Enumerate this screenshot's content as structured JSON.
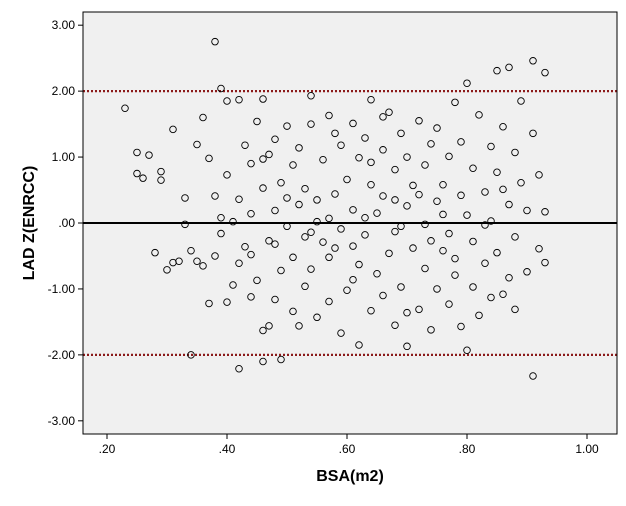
{
  "chart_data": {
    "type": "scatter",
    "title": "",
    "xlabel": "BSA(m2)",
    "ylabel": "LAD Z(ENRCC)",
    "xlim": [
      0.16,
      1.05
    ],
    "ylim": [
      -3.2,
      3.2
    ],
    "x_ticks": [
      0.2,
      0.4,
      0.6,
      0.8,
      1.0
    ],
    "x_tick_labels": [
      ".20",
      ".40",
      ".60",
      ".80",
      "1.00"
    ],
    "y_ticks": [
      3,
      2,
      1,
      0,
      -1,
      -2,
      -3
    ],
    "y_tick_labels": [
      "3.00",
      "2.00",
      "1.00",
      ".00",
      "-1.00",
      "-2.00",
      "-3.00"
    ],
    "grid": false,
    "background_color": "#f0f0f0",
    "point_color": "#000000",
    "reference_lines": [
      {
        "y": 2.0,
        "style": "dotted",
        "color": "#8b1a1a"
      },
      {
        "y": 0.0,
        "style": "solid",
        "color": "#000000"
      },
      {
        "y": -2.0,
        "style": "dotted",
        "color": "#8b1a1a"
      }
    ],
    "series": [
      {
        "points": [
          [
            0.23,
            1.74
          ],
          [
            0.25,
            1.07
          ],
          [
            0.25,
            0.75
          ],
          [
            0.26,
            0.68
          ],
          [
            0.27,
            1.03
          ],
          [
            0.28,
            -0.45
          ],
          [
            0.29,
            0.78
          ],
          [
            0.29,
            0.65
          ],
          [
            0.3,
            -0.71
          ],
          [
            0.31,
            1.42
          ],
          [
            0.31,
            -0.6
          ],
          [
            0.32,
            -0.58
          ],
          [
            0.33,
            -0.02
          ],
          [
            0.33,
            0.38
          ],
          [
            0.34,
            -2.0
          ],
          [
            0.34,
            -0.42
          ],
          [
            0.35,
            -0.58
          ],
          [
            0.35,
            1.19
          ],
          [
            0.36,
            1.6
          ],
          [
            0.36,
            -0.65
          ],
          [
            0.37,
            -1.22
          ],
          [
            0.37,
            0.98
          ],
          [
            0.38,
            2.75
          ],
          [
            0.38,
            0.41
          ],
          [
            0.38,
            -0.5
          ],
          [
            0.39,
            2.04
          ],
          [
            0.39,
            -0.16
          ],
          [
            0.4,
            1.85
          ],
          [
            0.4,
            0.73
          ],
          [
            0.4,
            -1.2
          ],
          [
            0.41,
            0.02
          ],
          [
            0.41,
            -0.94
          ],
          [
            0.42,
            -2.21
          ],
          [
            0.42,
            1.87
          ],
          [
            0.42,
            0.36
          ],
          [
            0.43,
            -0.36
          ],
          [
            0.43,
            1.18
          ],
          [
            0.44,
            -1.12
          ],
          [
            0.44,
            0.14
          ],
          [
            0.44,
            0.9
          ],
          [
            0.45,
            -0.87
          ],
          [
            0.45,
            1.54
          ],
          [
            0.46,
            -2.1
          ],
          [
            0.46,
            -1.63
          ],
          [
            0.46,
            0.53
          ],
          [
            0.46,
            1.88
          ],
          [
            0.47,
            -0.27
          ],
          [
            0.47,
            1.04
          ],
          [
            0.47,
            -1.56
          ],
          [
            0.48,
            -1.16
          ],
          [
            0.48,
            0.19
          ],
          [
            0.48,
            1.27
          ],
          [
            0.49,
            -2.07
          ],
          [
            0.49,
            -0.72
          ],
          [
            0.49,
            0.61
          ],
          [
            0.5,
            1.47
          ],
          [
            0.5,
            -0.05
          ],
          [
            0.51,
            -1.34
          ],
          [
            0.51,
            0.88
          ],
          [
            0.51,
            -0.52
          ],
          [
            0.52,
            1.14
          ],
          [
            0.52,
            0.28
          ],
          [
            0.53,
            -0.96
          ],
          [
            0.53,
            -0.21
          ],
          [
            0.53,
            0.52
          ],
          [
            0.54,
            1.93
          ],
          [
            0.54,
            -0.7
          ],
          [
            0.54,
            1.5
          ],
          [
            0.55,
            -1.43
          ],
          [
            0.55,
            0.35
          ],
          [
            0.56,
            -0.29
          ],
          [
            0.56,
            0.96
          ],
          [
            0.57,
            -1.19
          ],
          [
            0.57,
            0.07
          ],
          [
            0.57,
            1.63
          ],
          [
            0.58,
            -0.38
          ],
          [
            0.58,
            0.44
          ],
          [
            0.59,
            -1.67
          ],
          [
            0.59,
            1.18
          ],
          [
            0.59,
            -0.09
          ],
          [
            0.6,
            -1.02
          ],
          [
            0.6,
            0.66
          ],
          [
            0.61,
            1.51
          ],
          [
            0.61,
            -0.35
          ],
          [
            0.61,
            0.2
          ],
          [
            0.62,
            -1.85
          ],
          [
            0.62,
            0.99
          ],
          [
            0.62,
            -0.63
          ],
          [
            0.63,
            1.29
          ],
          [
            0.63,
            -0.18
          ],
          [
            0.64,
            0.58
          ],
          [
            0.64,
            -1.33
          ],
          [
            0.64,
            1.87
          ],
          [
            0.65,
            -0.77
          ],
          [
            0.65,
            0.15
          ],
          [
            0.66,
            1.11
          ],
          [
            0.66,
            -1.1
          ],
          [
            0.66,
            0.41
          ],
          [
            0.67,
            -0.46
          ],
          [
            0.67,
            1.68
          ],
          [
            0.68,
            -1.55
          ],
          [
            0.68,
            0.81
          ],
          [
            0.68,
            -0.13
          ],
          [
            0.69,
            1.36
          ],
          [
            0.69,
            -0.97
          ],
          [
            0.7,
            0.26
          ],
          [
            0.7,
            1.0
          ],
          [
            0.7,
            -1.87
          ],
          [
            0.71,
            -0.38
          ],
          [
            0.71,
            0.57
          ],
          [
            0.72,
            1.55
          ],
          [
            0.72,
            -1.31
          ],
          [
            0.73,
            -0.02
          ],
          [
            0.73,
            0.88
          ],
          [
            0.73,
            -0.69
          ],
          [
            0.74,
            -1.62
          ],
          [
            0.74,
            1.2
          ],
          [
            0.75,
            0.33
          ],
          [
            0.75,
            -1.0
          ],
          [
            0.75,
            1.44
          ],
          [
            0.76,
            -0.42
          ],
          [
            0.76,
            0.58
          ],
          [
            0.77,
            -1.23
          ],
          [
            0.77,
            1.01
          ],
          [
            0.77,
            -0.16
          ],
          [
            0.78,
            1.83
          ],
          [
            0.78,
            -0.79
          ],
          [
            0.79,
            0.42
          ],
          [
            0.79,
            -1.57
          ],
          [
            0.79,
            1.23
          ],
          [
            0.8,
            -1.93
          ],
          [
            0.8,
            0.12
          ],
          [
            0.8,
            2.12
          ],
          [
            0.81,
            -0.97
          ],
          [
            0.81,
            0.83
          ],
          [
            0.81,
            -0.28
          ],
          [
            0.82,
            1.64
          ],
          [
            0.82,
            -1.4
          ],
          [
            0.83,
            0.47
          ],
          [
            0.83,
            -0.61
          ],
          [
            0.84,
            1.16
          ],
          [
            0.84,
            -1.13
          ],
          [
            0.84,
            0.03
          ],
          [
            0.85,
            2.31
          ],
          [
            0.85,
            -0.45
          ],
          [
            0.85,
            0.77
          ],
          [
            0.86,
            -1.08
          ],
          [
            0.86,
            1.46
          ],
          [
            0.87,
            0.28
          ],
          [
            0.87,
            -0.83
          ],
          [
            0.87,
            2.36
          ],
          [
            0.88,
            1.07
          ],
          [
            0.88,
            -1.31
          ],
          [
            0.88,
            -0.21
          ],
          [
            0.89,
            0.61
          ],
          [
            0.89,
            1.85
          ],
          [
            0.9,
            -0.74
          ],
          [
            0.9,
            0.19
          ],
          [
            0.91,
            2.46
          ],
          [
            0.91,
            -2.32
          ],
          [
            0.91,
            1.36
          ],
          [
            0.92,
            -0.39
          ],
          [
            0.92,
            0.73
          ],
          [
            0.93,
            2.28
          ],
          [
            0.93,
            0.17
          ],
          [
            0.93,
            -0.6
          ],
          [
            0.63,
            0.08
          ],
          [
            0.55,
            0.02
          ],
          [
            0.69,
            -0.05
          ],
          [
            0.48,
            -0.32
          ],
          [
            0.58,
            1.36
          ],
          [
            0.66,
            1.61
          ],
          [
            0.72,
            0.43
          ],
          [
            0.52,
            -1.56
          ],
          [
            0.44,
            -0.48
          ],
          [
            0.61,
            -0.86
          ],
          [
            0.76,
            0.13
          ],
          [
            0.83,
            -0.03
          ],
          [
            0.39,
            0.08
          ],
          [
            0.57,
            -0.52
          ],
          [
            0.68,
            0.35
          ],
          [
            0.74,
            -0.27
          ],
          [
            0.5,
            0.38
          ],
          [
            0.64,
            0.92
          ],
          [
            0.46,
            0.97
          ],
          [
            0.86,
            0.51
          ],
          [
            0.78,
            -0.54
          ],
          [
            0.54,
            -0.14
          ],
          [
            0.7,
            -1.36
          ],
          [
            0.42,
            -0.61
          ]
        ]
      }
    ]
  }
}
